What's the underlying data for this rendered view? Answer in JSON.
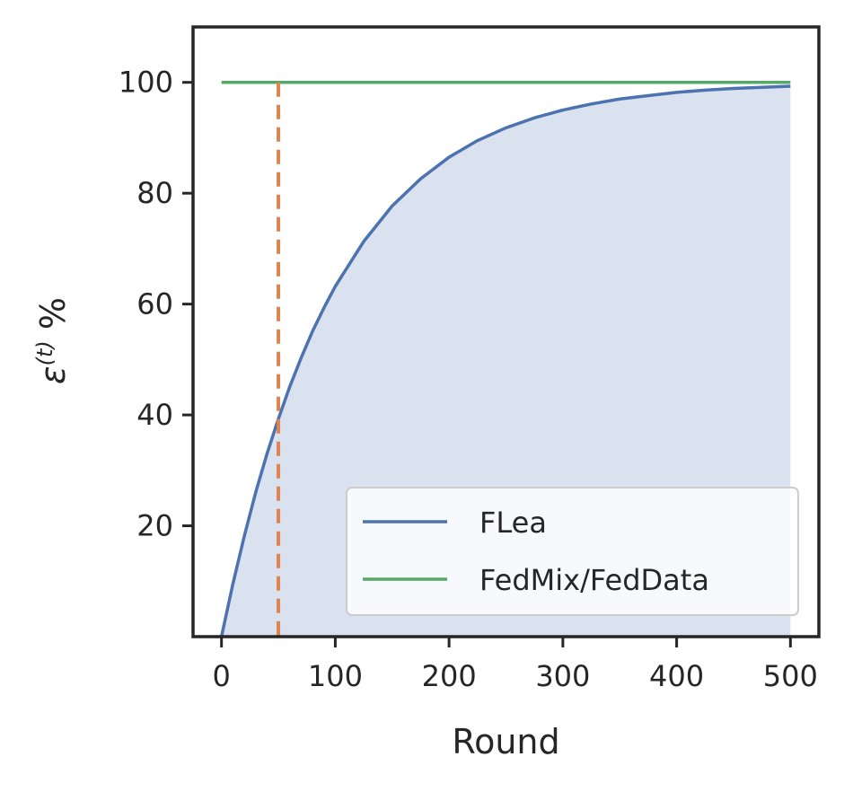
{
  "chart_data": {
    "type": "line",
    "xlabel": "Round",
    "ylabel_main": "ε",
    "ylabel_sup": "(t)",
    "ylabel_suffix": " %",
    "xlim": [
      -25,
      525
    ],
    "ylim": [
      0,
      110
    ],
    "xticks": [
      0,
      100,
      200,
      300,
      400,
      500
    ],
    "xtick_labels": [
      "0",
      "100",
      "200",
      "300",
      "400",
      "500"
    ],
    "yticks": [
      20,
      40,
      60,
      80,
      100
    ],
    "ytick_labels": [
      "20",
      "40",
      "60",
      "80",
      "100"
    ],
    "grid": false,
    "legend_position": "lower-right",
    "vline": {
      "x": 50,
      "color": "#dd8452",
      "style": "dashed"
    },
    "series": [
      {
        "name": "FLea",
        "color": "#4c72b0",
        "fill": true,
        "fill_color": "#dae1ef",
        "x": [
          0,
          10,
          20,
          30,
          40,
          50,
          60,
          70,
          80,
          90,
          100,
          125,
          150,
          175,
          200,
          225,
          250,
          275,
          300,
          325,
          350,
          375,
          400,
          425,
          450,
          475,
          500
        ],
        "y": [
          0,
          9.5,
          18.1,
          26,
          33.0,
          39.3,
          45.1,
          50.3,
          55.1,
          59.3,
          63.2,
          71.3,
          77.7,
          82.6,
          86.5,
          89.5,
          91.8,
          93.6,
          95.0,
          96.1,
          97.0,
          97.6,
          98.2,
          98.6,
          98.9,
          99.1,
          99.3
        ]
      },
      {
        "name": "FedMix/FedData",
        "color": "#55a868",
        "fill": false,
        "x": [
          0,
          500
        ],
        "y": [
          100,
          100
        ]
      }
    ]
  }
}
